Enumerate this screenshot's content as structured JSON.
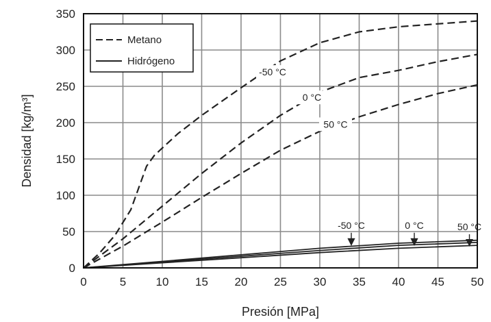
{
  "chart_data": {
    "type": "line",
    "xlabel": "Presión [MPa]",
    "ylabel": "Densidad [kg/m³]",
    "xlim": [
      0,
      50
    ],
    "ylim": [
      0,
      350
    ],
    "xticks": [
      0,
      5,
      10,
      15,
      20,
      25,
      30,
      35,
      40,
      45,
      50
    ],
    "yticks": [
      0,
      50,
      100,
      150,
      200,
      250,
      300,
      350
    ],
    "grid": true,
    "legend": {
      "placement": "top-left",
      "entries": [
        {
          "label": "Metano",
          "style": "dashed"
        },
        {
          "label": "Hidrógeno",
          "style": "solid"
        }
      ]
    },
    "series": [
      {
        "gas": "Metano",
        "temperature": "-50 °C",
        "style": "dashed",
        "x": [
          0,
          2,
          4,
          6,
          7,
          8,
          9,
          10,
          12,
          15,
          20,
          25,
          30,
          35,
          40,
          45,
          50
        ],
        "y": [
          0,
          20,
          45,
          80,
          110,
          140,
          155,
          165,
          185,
          210,
          248,
          285,
          310,
          325,
          332,
          336,
          340
        ]
      },
      {
        "gas": "Metano",
        "temperature": "0 °C",
        "style": "dashed",
        "x": [
          0,
          5,
          10,
          15,
          20,
          25,
          30,
          35,
          40,
          45,
          50
        ],
        "y": [
          0,
          40,
          85,
          130,
          172,
          210,
          242,
          262,
          272,
          284,
          294
        ]
      },
      {
        "gas": "Metano",
        "temperature": "50 °C",
        "style": "dashed",
        "x": [
          0,
          5,
          10,
          15,
          20,
          25,
          30,
          35,
          40,
          45,
          50
        ],
        "y": [
          0,
          30,
          63,
          97,
          130,
          162,
          188,
          208,
          225,
          240,
          252
        ]
      },
      {
        "gas": "Hidrógeno",
        "temperature": "-50 °C",
        "style": "solid",
        "x": [
          0,
          10,
          20,
          30,
          40,
          50
        ],
        "y": [
          0,
          9,
          18,
          27,
          34,
          38
        ]
      },
      {
        "gas": "Hidrógeno",
        "temperature": "0 °C",
        "style": "solid",
        "x": [
          0,
          10,
          20,
          30,
          40,
          50
        ],
        "y": [
          0,
          8,
          16,
          24,
          31,
          35
        ]
      },
      {
        "gas": "Hidrógeno",
        "temperature": "50 °C",
        "style": "solid",
        "x": [
          0,
          10,
          20,
          30,
          40,
          50
        ],
        "y": [
          0,
          7,
          14,
          21,
          27,
          31
        ]
      }
    ],
    "annotations": [
      {
        "text": "-50 °C",
        "series": 0,
        "at": [
          24,
          265
        ]
      },
      {
        "text": "0 °C",
        "series": 1,
        "at": [
          29,
          230
        ]
      },
      {
        "text": "50 °C",
        "series": 2,
        "at": [
          32,
          193
        ]
      },
      {
        "text": "-50 °C",
        "series": 3,
        "at": [
          34,
          54
        ],
        "arrow_to": [
          34,
          31
        ]
      },
      {
        "text": "0 °C",
        "series": 4,
        "at": [
          42,
          54
        ],
        "arrow_to": [
          42,
          31
        ]
      },
      {
        "text": "50 °C",
        "series": 5,
        "at": [
          49,
          52
        ],
        "arrow_to": [
          49,
          30
        ]
      }
    ]
  }
}
